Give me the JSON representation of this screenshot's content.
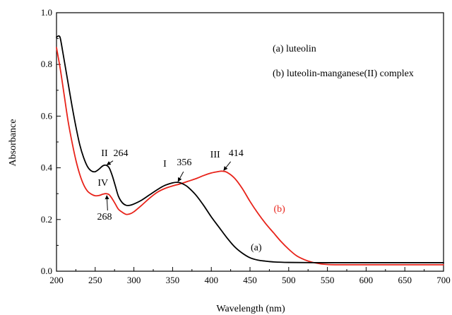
{
  "chart_data": {
    "type": "line",
    "xlabel": "Wavelength (nm)",
    "ylabel": "Absorbance",
    "xlim": [
      200,
      700
    ],
    "ylim": [
      0.0,
      1.0
    ],
    "x_ticks": [
      "200",
      "250",
      "300",
      "350",
      "400",
      "450",
      "500",
      "550",
      "600",
      "650",
      "700"
    ],
    "y_ticks": [
      "0.0",
      "0.2",
      "0.4",
      "0.6",
      "0.8",
      "1.0"
    ],
    "grid": false,
    "legend": {
      "placement": "top-right",
      "entries": [
        "(a) luteolin",
        "(b) luteolin-manganese(II) complex"
      ]
    },
    "series": [
      {
        "label": "(a)",
        "color": "#000000",
        "x": [
          200,
          203,
          205,
          208,
          212,
          216,
          220,
          225,
          230,
          235,
          240,
          245,
          250,
          255,
          260,
          264,
          268,
          272,
          276,
          280,
          285,
          290,
          295,
          300,
          310,
          320,
          330,
          340,
          350,
          356,
          360,
          365,
          370,
          380,
          390,
          400,
          410,
          420,
          430,
          440,
          450,
          460,
          470,
          480,
          500,
          550,
          600,
          650,
          700
        ],
        "y": [
          0.905,
          0.91,
          0.9,
          0.85,
          0.78,
          0.71,
          0.64,
          0.56,
          0.49,
          0.44,
          0.405,
          0.388,
          0.385,
          0.395,
          0.408,
          0.41,
          0.4,
          0.37,
          0.33,
          0.29,
          0.265,
          0.255,
          0.255,
          0.26,
          0.275,
          0.295,
          0.315,
          0.332,
          0.342,
          0.344,
          0.342,
          0.335,
          0.325,
          0.295,
          0.255,
          0.21,
          0.17,
          0.13,
          0.095,
          0.07,
          0.052,
          0.043,
          0.039,
          0.036,
          0.034,
          0.033,
          0.033,
          0.033,
          0.033
        ]
      },
      {
        "label": "(b)",
        "color": "#e8231a",
        "x": [
          200,
          205,
          210,
          215,
          220,
          225,
          230,
          235,
          240,
          245,
          250,
          255,
          260,
          264,
          268,
          272,
          276,
          280,
          285,
          290,
          295,
          300,
          310,
          320,
          330,
          340,
          350,
          360,
          370,
          380,
          390,
          400,
          410,
          414,
          420,
          430,
          440,
          450,
          460,
          470,
          480,
          490,
          500,
          510,
          520,
          530,
          540,
          550,
          560,
          570,
          580,
          600,
          650,
          700
        ],
        "y": [
          0.865,
          0.78,
          0.68,
          0.58,
          0.5,
          0.43,
          0.375,
          0.335,
          0.31,
          0.298,
          0.292,
          0.293,
          0.298,
          0.3,
          0.296,
          0.28,
          0.26,
          0.24,
          0.228,
          0.22,
          0.222,
          0.23,
          0.255,
          0.282,
          0.305,
          0.32,
          0.33,
          0.338,
          0.348,
          0.358,
          0.37,
          0.38,
          0.386,
          0.387,
          0.383,
          0.36,
          0.32,
          0.27,
          0.225,
          0.185,
          0.15,
          0.115,
          0.085,
          0.06,
          0.045,
          0.035,
          0.029,
          0.026,
          0.025,
          0.025,
          0.025,
          0.025,
          0.025,
          0.025
        ]
      }
    ],
    "annotations": [
      {
        "text": "II",
        "color": "#000000",
        "wavelength": 262,
        "absorbance": 0.445
      },
      {
        "text": "264",
        "color": "#000000",
        "wavelength": 283,
        "absorbance": 0.445
      },
      {
        "text": "I",
        "color": "#000000",
        "wavelength": 340,
        "absorbance": 0.405
      },
      {
        "text": "356",
        "color": "#000000",
        "wavelength": 365,
        "absorbance": 0.41
      },
      {
        "text": "III",
        "color": "#000000",
        "wavelength": 405,
        "absorbance": 0.44
      },
      {
        "text": "414",
        "color": "#000000",
        "wavelength": 432,
        "absorbance": 0.445
      },
      {
        "text": "IV",
        "color": "#000000",
        "wavelength": 260,
        "absorbance": 0.33
      },
      {
        "text": "268",
        "color": "#000000",
        "wavelength": 262,
        "absorbance": 0.2
      },
      {
        "text": "(a)",
        "color": "#000000",
        "wavelength": 458,
        "absorbance": 0.08
      },
      {
        "text": "(b)",
        "color": "#e8231a",
        "wavelength": 488,
        "absorbance": 0.23
      }
    ],
    "arrows": [
      {
        "from": [
          273,
          0.427
        ],
        "to": [
          265,
          0.411
        ]
      },
      {
        "from": [
          364,
          0.385
        ],
        "to": [
          357,
          0.347
        ]
      },
      {
        "from": [
          425,
          0.424
        ],
        "to": [
          416,
          0.39
        ]
      },
      {
        "from": [
          266,
          0.235
        ],
        "to": [
          265,
          0.293
        ]
      }
    ]
  }
}
